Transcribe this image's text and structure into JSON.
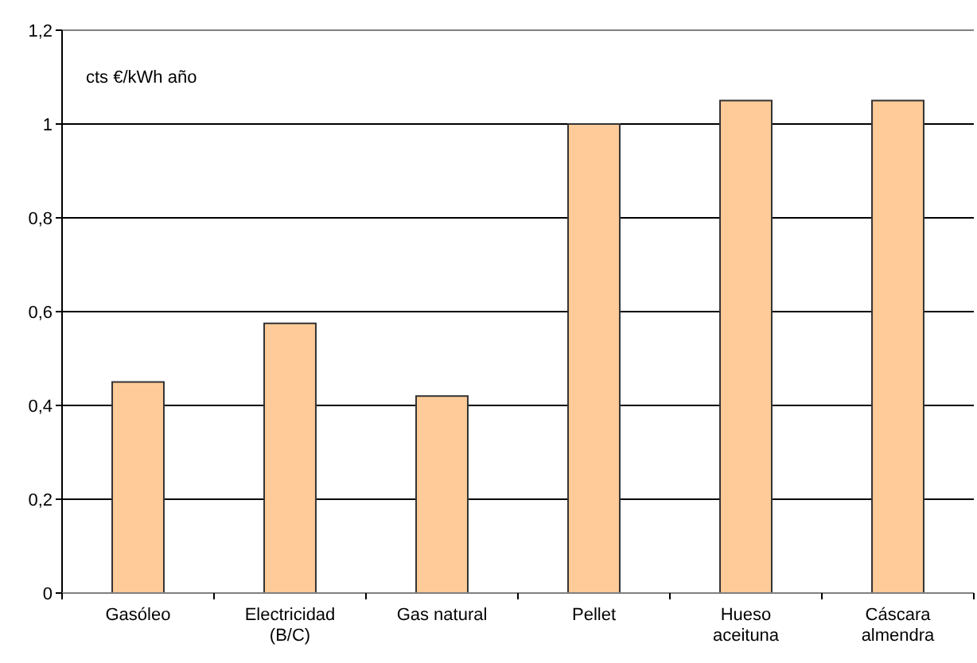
{
  "chart_data": {
    "type": "bar",
    "ylabel": "cts €/kWh año",
    "categories": [
      "Gasóleo",
      "Electricidad (B/C)",
      "Gas natural",
      "Pellet",
      "Hueso aceituna",
      "Cáscara almendra"
    ],
    "values": [
      0.45,
      0.575,
      0.42,
      1.0,
      1.05,
      1.05
    ],
    "color": "#ffcc99",
    "ylim": [
      0,
      1.2
    ],
    "yticks": [
      {
        "value": 0,
        "label": "0"
      },
      {
        "value": 0.2,
        "label": "0,2"
      },
      {
        "value": 0.4,
        "label": "0,4"
      },
      {
        "value": 0.6,
        "label": "0,6"
      },
      {
        "value": 0.8,
        "label": "0,8"
      },
      {
        "value": 1,
        "label": "1"
      },
      {
        "value": 1.2,
        "label": "1,2"
      }
    ],
    "grid": "y"
  }
}
